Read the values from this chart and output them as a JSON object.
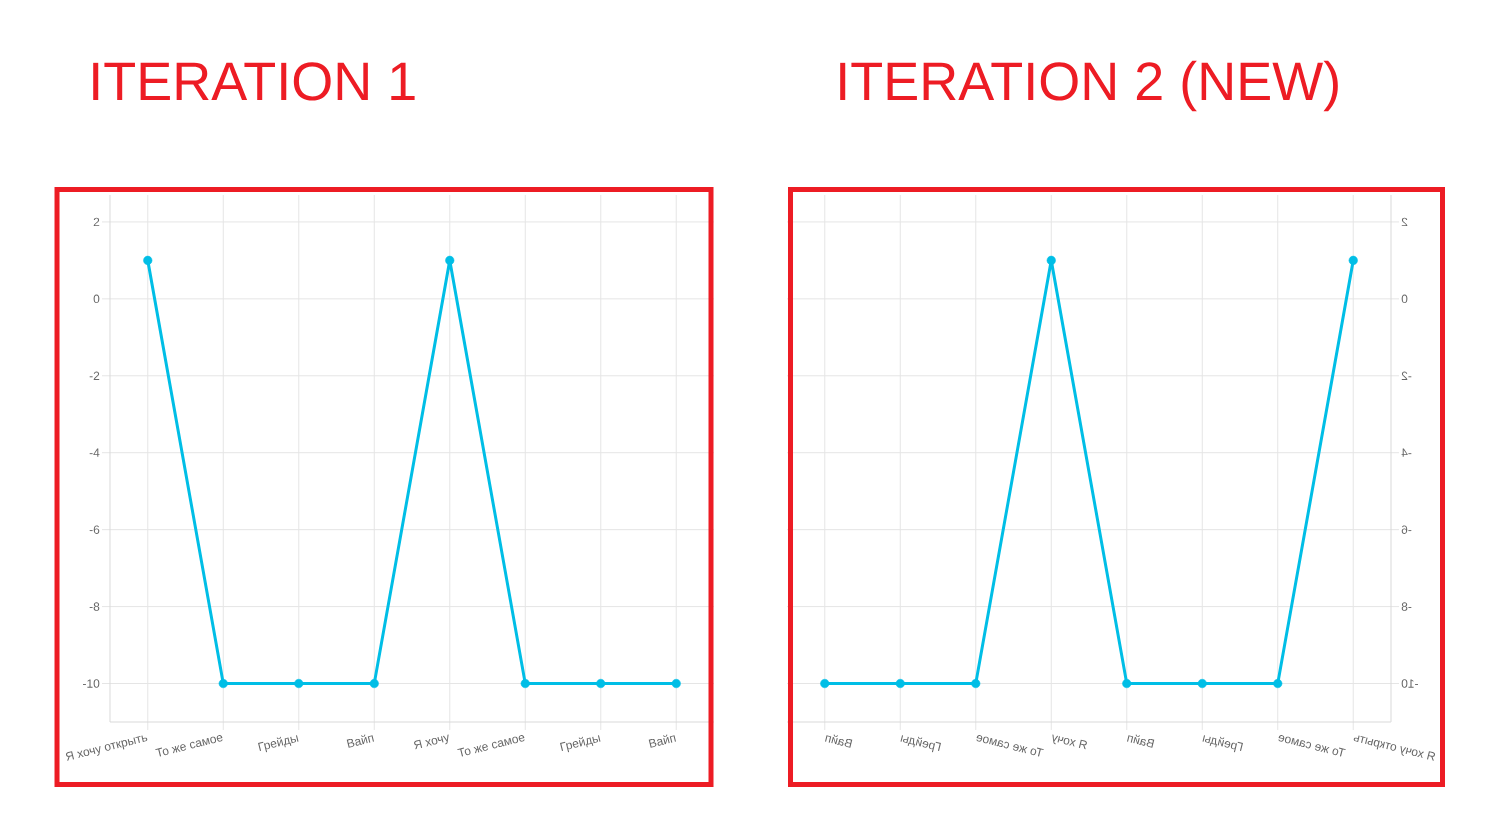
{
  "chart_data": [
    {
      "type": "line",
      "title": "ITERATION 1",
      "categories": [
        "Я хочу открыть",
        "То же самое",
        "Грейды",
        "Вайп",
        "Я хочу",
        "То же самое",
        "Грейды",
        "Вайп"
      ],
      "series": [
        {
          "color": "#00bee6",
          "values": [
            1,
            -10,
            -10,
            -10,
            1,
            -10,
            -10,
            -10
          ]
        }
      ],
      "ylim": [
        -11,
        2.7
      ],
      "yticks": [
        -10,
        -8,
        -6,
        -4,
        -2,
        0,
        2
      ],
      "grid": true,
      "marker": "circle",
      "line_style": "solid"
    },
    {
      "type": "line",
      "title": "ITERATION 2 (NEW)",
      "categories": [
        "Вайп",
        "Грейды",
        "То же самое",
        "Я хочу",
        "Вайп",
        "Грейды",
        "То же самое",
        "Я хочу открыть"
      ],
      "series": [
        {
          "color": "#00bee6",
          "values": [
            -10,
            -10,
            -10,
            1,
            -10,
            -10,
            -10,
            1
          ],
          "axis": "y2"
        }
      ],
      "y2lim": [
        -11,
        2.7
      ],
      "y2ticks": [
        -10,
        -8,
        -6,
        -4,
        -2,
        0,
        2
      ],
      "grid": true,
      "marker": "circle",
      "line_style": "solid"
    }
  ]
}
